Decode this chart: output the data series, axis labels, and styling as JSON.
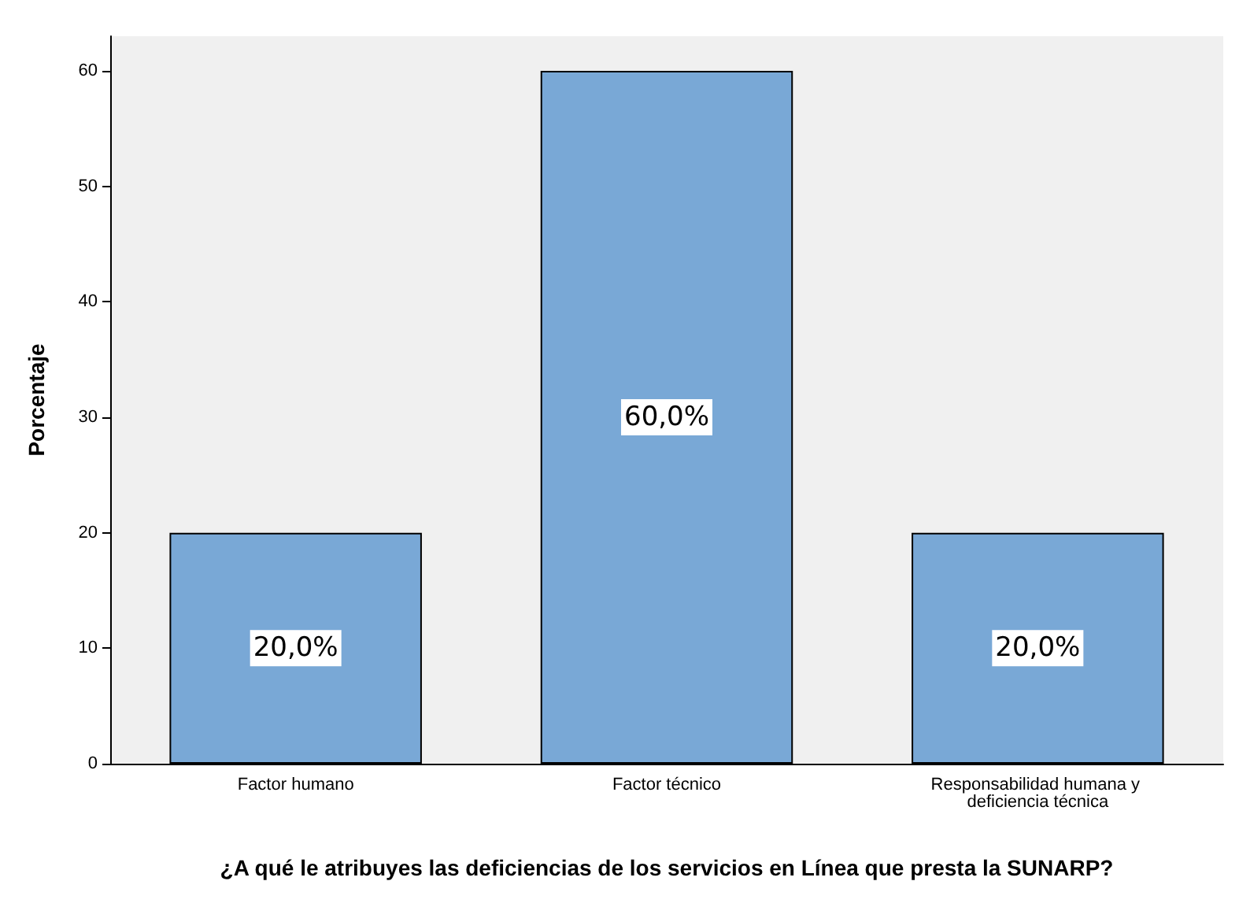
{
  "chart_data": {
    "type": "bar",
    "ylabel": "Porcentaje",
    "xlabel": "¿A qué le atribuyes las deficiencias de los servicios en Línea que presta la SUNARP?",
    "categories": [
      "Factor humano",
      "Factor técnico",
      "Responsabilidad humana y deficiencia técnica"
    ],
    "values": [
      20,
      60,
      20
    ],
    "color": "#79a8d6",
    "value_labels": [
      "20,0%",
      "60,0%",
      "20,0%"
    ],
    "ylim": [
      0,
      63
    ],
    "yticks": [
      0,
      10,
      20,
      30,
      40,
      50,
      60
    ],
    "grid": false
  }
}
